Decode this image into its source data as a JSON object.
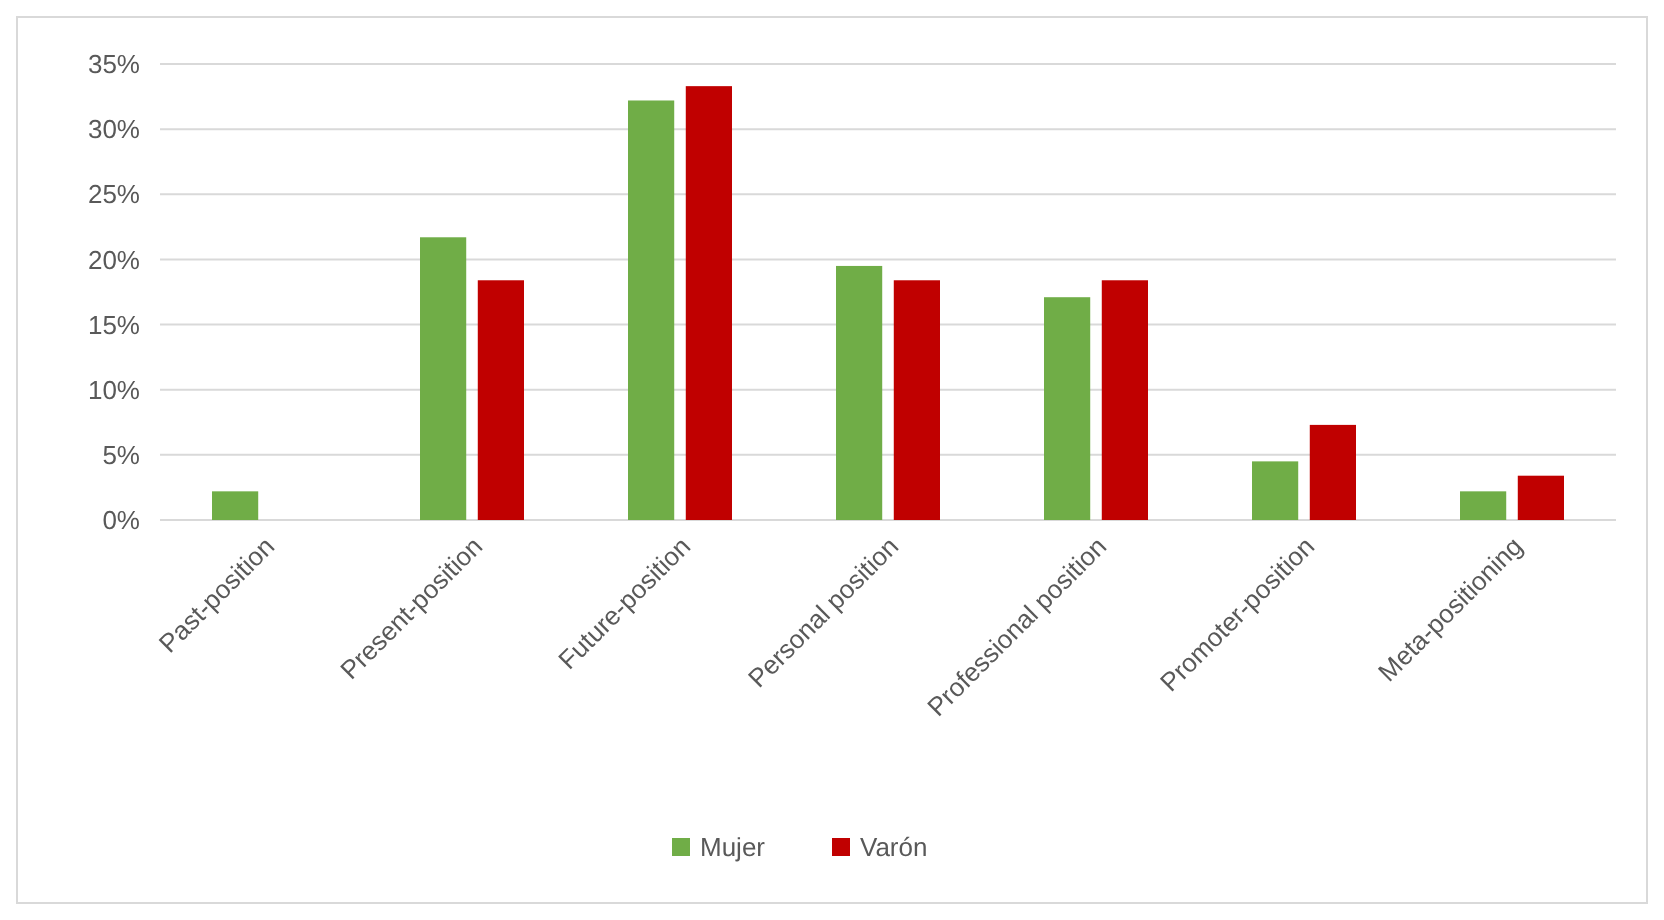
{
  "chart_data": {
    "type": "bar",
    "categories": [
      "Past-position",
      "Present-position",
      "Future-position",
      "Personal position",
      "Professional position",
      "Promoter-position",
      "Meta-positioning"
    ],
    "series": [
      {
        "name": "Mujer",
        "color": "#70ad47",
        "values": [
          2.2,
          21.7,
          32.2,
          19.5,
          17.1,
          4.5,
          2.2
        ]
      },
      {
        "name": "Varón",
        "color": "#c00000",
        "values": [
          null,
          18.4,
          33.3,
          18.4,
          18.4,
          7.3,
          3.4
        ]
      }
    ],
    "ylim": [
      0,
      35
    ],
    "yticks": [
      {
        "value": 0,
        "label": "0%"
      },
      {
        "value": 5,
        "label": "5%"
      },
      {
        "value": 10,
        "label": "10%"
      },
      {
        "value": 15,
        "label": "15%"
      },
      {
        "value": 20,
        "label": "20%"
      },
      {
        "value": 25,
        "label": "25%"
      },
      {
        "value": 30,
        "label": "30%"
      },
      {
        "value": 35,
        "label": "35%"
      }
    ],
    "grid": "y",
    "legend": "bottom"
  }
}
